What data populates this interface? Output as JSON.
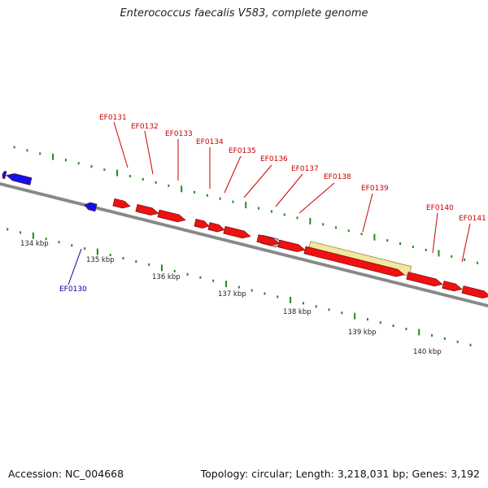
{
  "header": {
    "title": "Enterococcus faecalis V583, complete genome"
  },
  "footer": {
    "accession": "Accession: NC_004668",
    "topology": "Topology: circular; Length: 3,218,031 bp; Genes: 3,192"
  },
  "colors": {
    "forward_gene": "#ee1111",
    "reverse_gene": "#1111ee",
    "pseudo_gene": "#bbbbbb",
    "highlight": "#f2e6a0",
    "backbone": "#888888",
    "tick": "#228822",
    "label_forward": "#cc0000",
    "label_reverse": "#000099",
    "kbp_label": "#222222"
  },
  "kbp_ticks": [
    "134 kbp",
    "135 kbp",
    "136 kbp",
    "137 kbp",
    "138 kbp",
    "139 kbp",
    "140 kbp"
  ],
  "gene_labels": [
    {
      "text": "EF0130",
      "strand": "reverse"
    },
    {
      "text": "EF0131",
      "strand": "forward"
    },
    {
      "text": "EF0132",
      "strand": "forward"
    },
    {
      "text": "EF0133",
      "strand": "forward"
    },
    {
      "text": "EF0134",
      "strand": "forward"
    },
    {
      "text": "EF0135",
      "strand": "forward"
    },
    {
      "text": "EF0136",
      "strand": "forward"
    },
    {
      "text": "EF0137",
      "strand": "forward"
    },
    {
      "text": "EF0138",
      "strand": "forward"
    },
    {
      "text": "EF0139",
      "strand": "forward"
    },
    {
      "text": "EF0140",
      "strand": "forward"
    },
    {
      "text": "EF0141",
      "strand": "forward"
    }
  ]
}
